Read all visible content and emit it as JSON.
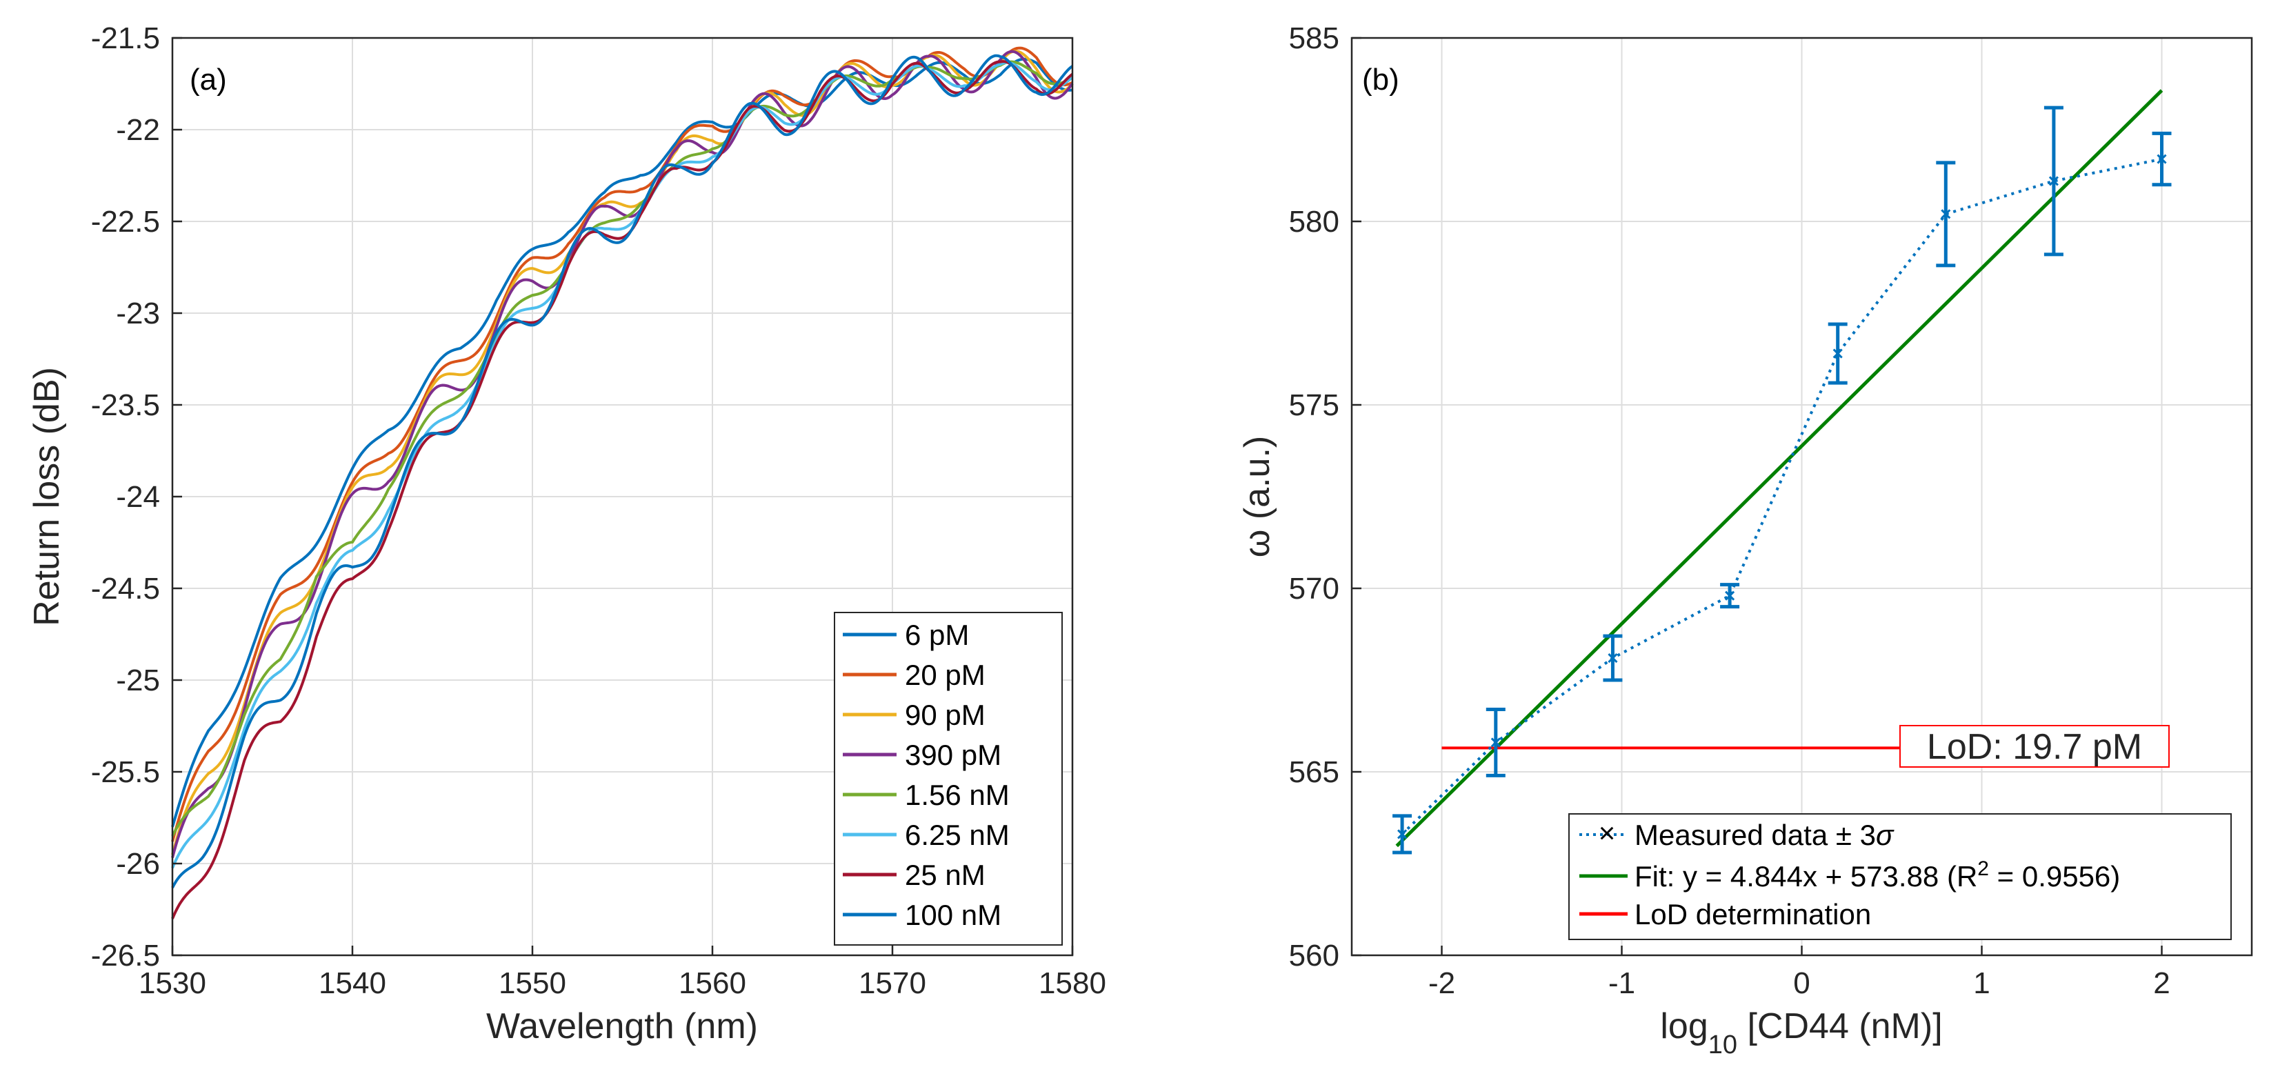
{
  "chart_data": [
    {
      "type": "line",
      "panel_label": "(a)",
      "title": "",
      "xlabel": "Wavelength (nm)",
      "ylabel": "Return loss (dB)",
      "xlim": [
        1530,
        1580
      ],
      "ylim": [
        -26.5,
        -21.5
      ],
      "xticks": [
        "1530",
        "1540",
        "1550",
        "1560",
        "1570",
        "1580"
      ],
      "yticks": [
        "-21.5",
        "-22",
        "-22.5",
        "-23",
        "-23.5",
        "-24",
        "-24.5",
        "-25",
        "-25.5",
        "-26",
        "-26.5"
      ],
      "grid": true,
      "legend_position": "bottom-right",
      "x": [
        1530,
        1532,
        1534,
        1536,
        1538,
        1540,
        1542,
        1544,
        1546,
        1548,
        1550,
        1552,
        1554,
        1556,
        1558,
        1560,
        1562,
        1564,
        1566,
        1568,
        1570,
        1572,
        1574,
        1576,
        1578,
        1580
      ],
      "series": [
        {
          "name": "6 pM",
          "color": "#0072BD",
          "values": [
            -25.8,
            -25.3,
            -24.9,
            -24.5,
            -24.2,
            -23.9,
            -23.6,
            -23.4,
            -23.2,
            -22.9,
            -22.7,
            -22.5,
            -22.4,
            -22.2,
            -22.1,
            -21.95,
            -21.9,
            -21.85,
            -21.8,
            -21.75,
            -21.7,
            -21.7,
            -21.68,
            -21.7,
            -21.66,
            -21.74
          ]
        },
        {
          "name": "20 pM",
          "color": "#D95319",
          "values": [
            -25.9,
            -25.4,
            -25.0,
            -24.6,
            -24.3,
            -24.0,
            -23.7,
            -23.5,
            -23.25,
            -23.0,
            -22.75,
            -22.55,
            -22.45,
            -22.25,
            -22.15,
            -21.95,
            -21.9,
            -21.85,
            -21.75,
            -21.7,
            -21.63,
            -21.67,
            -21.62,
            -21.65,
            -21.62,
            -21.7
          ]
        },
        {
          "name": "90 pM",
          "color": "#EDB120",
          "values": [
            -26.0,
            -25.5,
            -25.1,
            -24.7,
            -24.35,
            -24.05,
            -23.75,
            -23.55,
            -23.3,
            -23.05,
            -22.8,
            -22.6,
            -22.5,
            -22.3,
            -22.2,
            -22.0,
            -21.92,
            -21.88,
            -21.78,
            -21.73,
            -21.66,
            -21.7,
            -21.65,
            -21.68,
            -21.66,
            -21.72
          ]
        },
        {
          "name": "390 pM",
          "color": "#7E2F8E",
          "values": [
            -26.05,
            -25.55,
            -25.15,
            -24.75,
            -24.4,
            -24.1,
            -23.8,
            -23.6,
            -23.35,
            -23.1,
            -22.85,
            -22.65,
            -22.52,
            -22.32,
            -22.22,
            -22.03,
            -21.94,
            -21.9,
            -21.82,
            -21.76,
            -21.7,
            -21.72,
            -21.67,
            -21.7,
            -21.68,
            -21.74
          ]
        },
        {
          "name": "1.56 nM",
          "color": "#77AC30",
          "values": [
            -25.9,
            -25.6,
            -25.2,
            -24.9,
            -24.4,
            -24.3,
            -23.9,
            -23.65,
            -23.4,
            -23.15,
            -22.9,
            -22.7,
            -22.55,
            -22.35,
            -22.25,
            -22.05,
            -21.95,
            -21.9,
            -21.8,
            -21.75,
            -21.68,
            -21.72,
            -21.66,
            -21.7,
            -21.66,
            -21.73
          ]
        },
        {
          "name": "6.25 nM",
          "color": "#4DBEEE",
          "values": [
            -26.1,
            -25.7,
            -25.3,
            -24.95,
            -24.55,
            -24.35,
            -24.0,
            -23.75,
            -23.45,
            -23.2,
            -22.95,
            -22.72,
            -22.58,
            -22.38,
            -22.28,
            -22.07,
            -21.97,
            -21.92,
            -21.82,
            -21.77,
            -21.7,
            -21.74,
            -21.68,
            -21.72,
            -21.68,
            -21.75
          ]
        },
        {
          "name": "25 nM",
          "color": "#A2142F",
          "values": [
            -26.4,
            -25.95,
            -25.5,
            -25.2,
            -24.75,
            -24.5,
            -24.1,
            -23.8,
            -23.5,
            -23.25,
            -23.0,
            -22.75,
            -22.6,
            -22.4,
            -22.3,
            -22.08,
            -21.98,
            -21.93,
            -21.83,
            -21.78,
            -21.71,
            -21.75,
            -21.69,
            -21.73,
            -21.69,
            -21.76
          ]
        },
        {
          "name": "100 nM",
          "color": "#0072BD",
          "values": [
            -26.25,
            -25.8,
            -25.4,
            -25.05,
            -24.65,
            -24.42,
            -24.05,
            -23.78,
            -23.48,
            -23.22,
            -22.98,
            -22.73,
            -22.59,
            -22.39,
            -22.29,
            -22.07,
            -21.98,
            -21.92,
            -21.82,
            -21.77,
            -21.7,
            -21.74,
            -21.68,
            -21.72,
            -21.68,
            -21.75
          ]
        }
      ]
    },
    {
      "type": "scatter",
      "panel_label": "(b)",
      "title": "",
      "xlabel_main": "log",
      "xlabel_sub": "10",
      "xlabel_rest": " [CD44 (nM)]",
      "ylabel": "ω (a.u.)",
      "xlim": [
        -2.5,
        2.5
      ],
      "ylim": [
        560,
        585
      ],
      "xticks": [
        "-2",
        "-1",
        "0",
        "1",
        "2"
      ],
      "yticks": [
        "560",
        "565",
        "570",
        "575",
        "580",
        "585"
      ],
      "grid": true,
      "legend_position": "bottom-right",
      "series": [
        {
          "name": "Measured data ± 3σ",
          "color": "#0072BD",
          "style": "dotted-x",
          "x": [
            -2.22,
            -1.7,
            -1.05,
            -0.4,
            0.2,
            0.8,
            1.4,
            2.0
          ],
          "y": [
            563.3,
            565.8,
            568.1,
            569.8,
            576.4,
            580.2,
            581.1,
            581.7
          ],
          "err": [
            0.5,
            0.9,
            0.6,
            0.3,
            0.8,
            1.4,
            2.0,
            0.7
          ]
        },
        {
          "name": "Fit: y = 4.844x + 573.88 (R² = 0.9556)",
          "color": "#008000",
          "style": "line",
          "x": [
            -2.25,
            2.0
          ],
          "y": [
            562.98,
            583.57
          ]
        },
        {
          "name": "LoD determination",
          "color": "#FF0000",
          "style": "line",
          "x": [
            -2.0,
            0.6
          ],
          "y": [
            565.65,
            565.65
          ]
        }
      ],
      "annotation": "LoD: 19.7 pM",
      "legend": {
        "measured_prefix": "Measured data ",
        "measured_suffix": "± 3",
        "measured_sigma": "σ",
        "fit_prefix": "Fit: y = 4.844x + 573.88 (R",
        "fit_sup": "2",
        "fit_suffix": " = 0.9556)",
        "lod": "LoD determination"
      }
    }
  ]
}
